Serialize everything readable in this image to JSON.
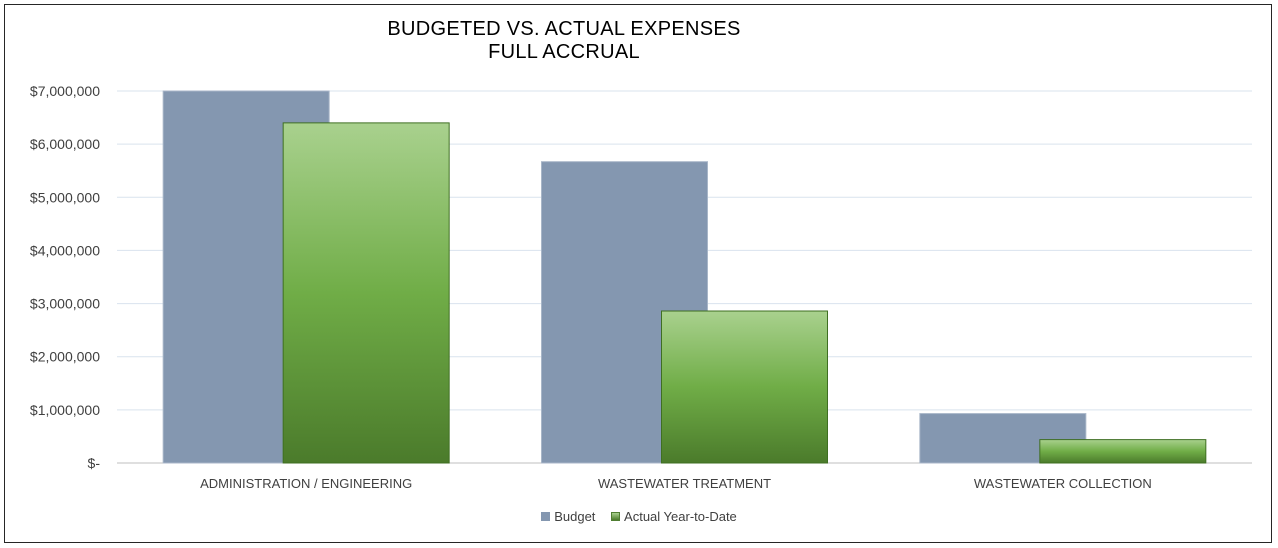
{
  "chart_data": {
    "type": "bar",
    "title_line1": "BUDGETED VS. ACTUAL EXPENSES",
    "title_line2": "FULL ACCRUAL",
    "categories": [
      "ADMINISTRATION / ENGINEERING",
      "WASTEWATER TREATMENT",
      "WASTEWATER COLLECTION"
    ],
    "series": [
      {
        "name": "Budget",
        "values": [
          7000000,
          5670000,
          930000
        ],
        "color": "#8497b0"
      },
      {
        "name": "Actual Year-to-Date",
        "values": [
          6400000,
          2860000,
          440000
        ],
        "color": "#70ad47"
      }
    ],
    "y_ticks": [
      "$-",
      "$1,000,000",
      "$2,000,000",
      "$3,000,000",
      "$4,000,000",
      "$5,000,000",
      "$6,000,000",
      "$7,000,000"
    ],
    "ylim": [
      0,
      7000000
    ],
    "grid": true,
    "legend_position": "bottom"
  }
}
